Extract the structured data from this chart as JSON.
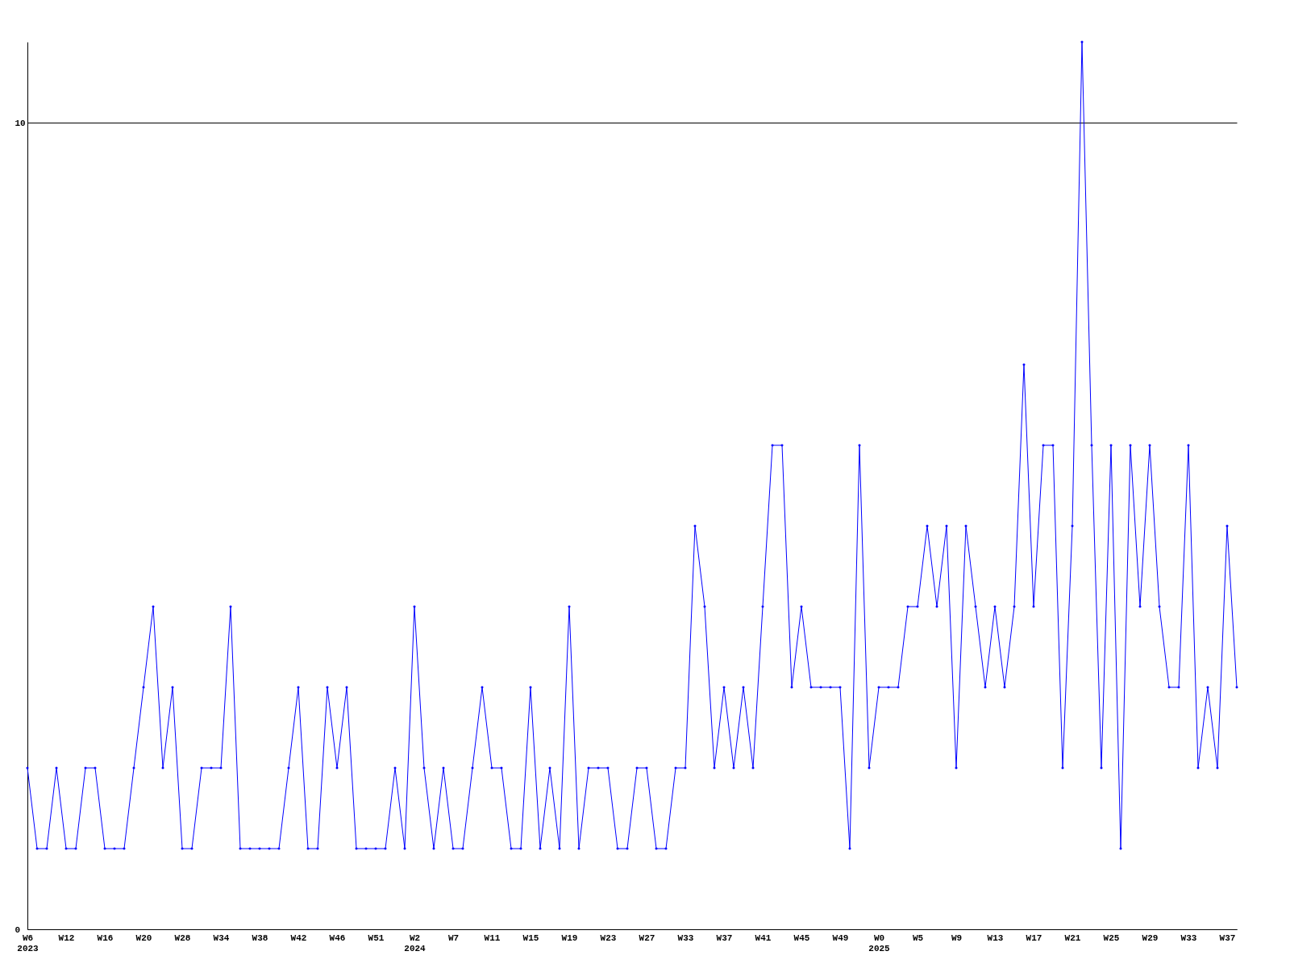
{
  "chart_data": {
    "type": "line",
    "categories": [
      "W6\n2023",
      null,
      null,
      null,
      "W12",
      null,
      null,
      null,
      "W16",
      null,
      null,
      null,
      "W20",
      null,
      null,
      null,
      "W28",
      null,
      null,
      null,
      "W34",
      null,
      null,
      null,
      "W38",
      null,
      null,
      null,
      "W42",
      null,
      null,
      null,
      "W46",
      null,
      null,
      null,
      "W51",
      null,
      null,
      null,
      "W2\n2024",
      null,
      null,
      null,
      "W7",
      null,
      null,
      null,
      "W11",
      null,
      null,
      null,
      "W15",
      null,
      null,
      null,
      "W19",
      null,
      null,
      null,
      "W23",
      null,
      null,
      null,
      "W27",
      null,
      null,
      null,
      "W33",
      null,
      null,
      null,
      "W37",
      null,
      null,
      null,
      "W41",
      null,
      null,
      null,
      "W45",
      null,
      null,
      null,
      "W49",
      null,
      null,
      null,
      "W0\n2025",
      null,
      null,
      null,
      "W5",
      null,
      null,
      null,
      "W9",
      null,
      null,
      null,
      "W13",
      null,
      null,
      null,
      "W17",
      null,
      null,
      null,
      "W21",
      null,
      null,
      null,
      "W25",
      null,
      null,
      null,
      "W29",
      null,
      null,
      null,
      "W33",
      null,
      null,
      null,
      "W37",
      null
    ],
    "series": [
      {
        "color": "#0000ff",
        "values": [
          2,
          1,
          1,
          2,
          1,
          1,
          2,
          2,
          1,
          1,
          1,
          2,
          3,
          4,
          2,
          3,
          1,
          1,
          2,
          2,
          2,
          4,
          1,
          1,
          1,
          1,
          1,
          2,
          3,
          1,
          1,
          3,
          2,
          3,
          1,
          1,
          1,
          1,
          2,
          1,
          4,
          2,
          1,
          2,
          1,
          1,
          2,
          3,
          2,
          2,
          1,
          1,
          3,
          1,
          2,
          1,
          4,
          1,
          2,
          2,
          2,
          1,
          1,
          2,
          2,
          1,
          1,
          2,
          2,
          5,
          4,
          2,
          3,
          2,
          3,
          2,
          4,
          6,
          6,
          3,
          4,
          3,
          3,
          3,
          3,
          1,
          6,
          2,
          3,
          3,
          3,
          4,
          4,
          5,
          4,
          5,
          2,
          5,
          4,
          3,
          4,
          3,
          4,
          7,
          4,
          6,
          6,
          2,
          5,
          11,
          6,
          2,
          6,
          1,
          6,
          4,
          6,
          4,
          3,
          3,
          6,
          2,
          3,
          2,
          5,
          3
        ]
      }
    ],
    "ylim": [
      0,
      11
    ],
    "yticks": [
      0,
      10
    ],
    "grid": "y",
    "marker": "diamond",
    "line_style": "solid"
  }
}
